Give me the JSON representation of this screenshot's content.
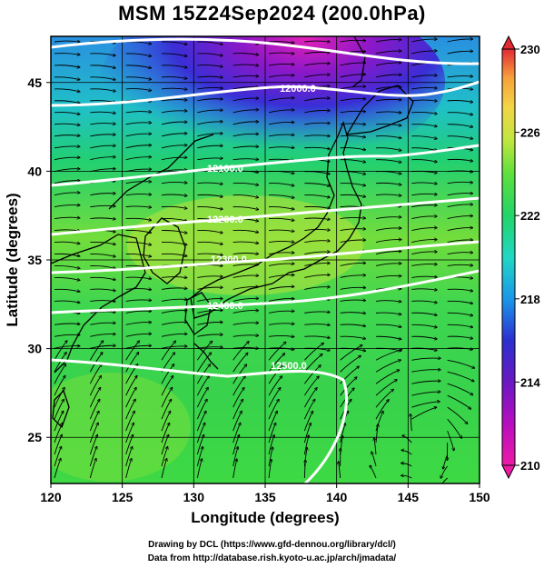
{
  "title": "MSM 15Z24Sep2024 (200.0hPa)",
  "xaxis": {
    "label": "Longitude (degrees)",
    "min": 120,
    "max": 150,
    "ticks": [
      "120",
      "125",
      "130",
      "135",
      "140",
      "145",
      "150"
    ]
  },
  "yaxis": {
    "label": "Latitude  (degrees)",
    "min": 22.4,
    "max": 47.6,
    "ticks": [
      "25",
      "30",
      "35",
      "40",
      "45"
    ]
  },
  "colorbar": {
    "min": 210,
    "max": 230,
    "labels": [
      "230",
      "226",
      "222",
      "218",
      "214",
      "210"
    ],
    "colors": [
      "#e22a35",
      "#f2632c",
      "#f7a23b",
      "#f3d546",
      "#bfe63f",
      "#5ee03d",
      "#22d468",
      "#20d8c4",
      "#1a97e8",
      "#2b2fd0",
      "#6a18c2",
      "#b70ebf",
      "#ee1aa7"
    ]
  },
  "contours": {
    "labels": [
      "12000.0",
      "12100.0",
      "12200.0",
      "12300.0",
      "12400.0",
      "12500.0"
    ],
    "color": "#ffffff"
  },
  "credits": {
    "line1": "Drawing by DCL (https://www.gfd-dennou.org/library/dcl/)",
    "line2": "Data from http://database.rish.kyoto-u.ac.jp/arch/jmadata/"
  },
  "map_data": {
    "projection": "equirectangular",
    "variable": "temperature / geopotential height / wind at 200.0hPa",
    "regions": [
      "Japan",
      "Korean Peninsula",
      "China coast",
      "Taiwan"
    ]
  }
}
